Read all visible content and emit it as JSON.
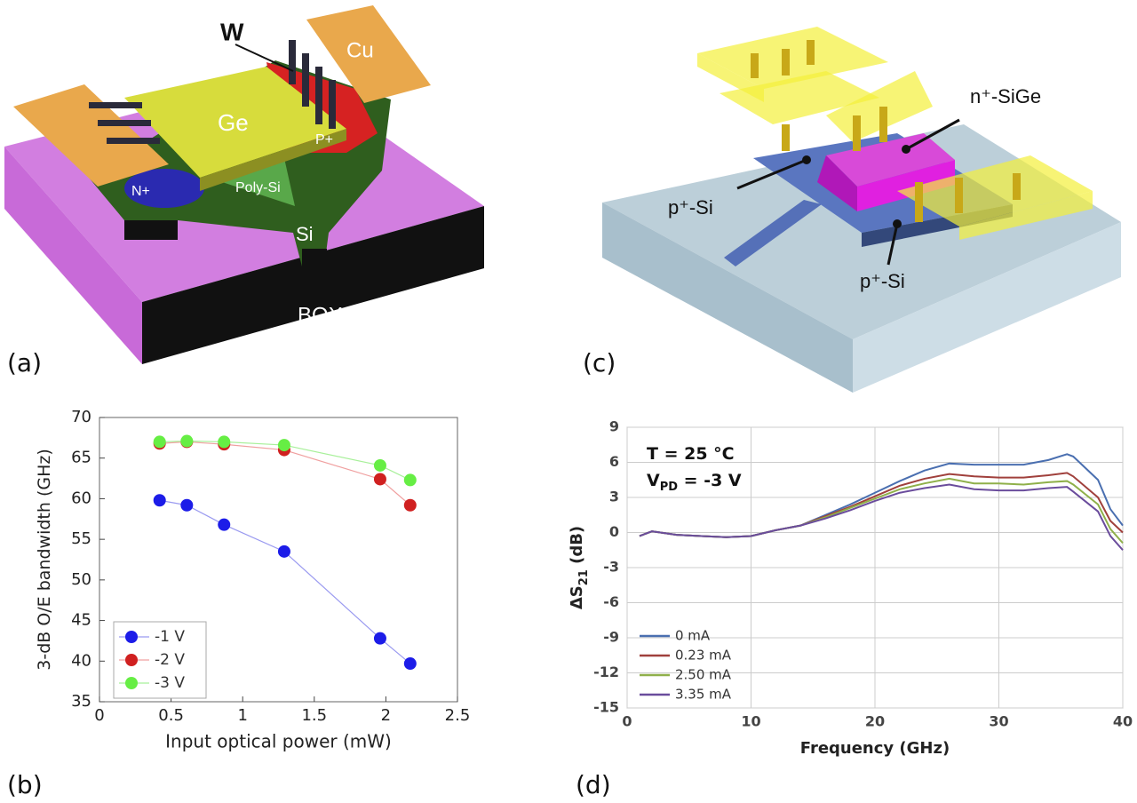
{
  "panel_labels": [
    "(a)",
    "(b)",
    "(c)",
    "(d)"
  ],
  "diagram_a": {
    "labels": [
      "W",
      "Cu",
      "Ge",
      "P+",
      "N+",
      "Poly-Si",
      "Si",
      "BOX"
    ]
  },
  "diagram_c": {
    "labels": [
      "n⁺-SiGe",
      "p⁺-Si",
      "p⁺-Si"
    ]
  },
  "chart_data": [
    {
      "type": "line",
      "markers": true,
      "xlabel": "Input optical power (mW)",
      "ylabel": [
        "3-dB O/E bandwidth (GHz)"
      ],
      "x": [
        0.42,
        0.61,
        0.87,
        1.29,
        1.96,
        2.17
      ],
      "series": [
        {
          "name": "-1 V",
          "color": "#1c1ce8",
          "line_color": "#9a9af0",
          "values": [
            59.8,
            59.2,
            56.8,
            53.5,
            42.8,
            39.7
          ]
        },
        {
          "name": "-2 V",
          "color": "#d02020",
          "line_color": "#f0a0a0",
          "values": [
            66.8,
            67.0,
            66.7,
            66.0,
            62.4,
            59.2
          ]
        },
        {
          "name": "-3 V",
          "color": "#66ee44",
          "line_color": "#a8f09a",
          "values": [
            67.0,
            67.1,
            67.0,
            66.6,
            64.1,
            62.3
          ]
        }
      ],
      "xlim": [
        0,
        2.5
      ],
      "xticks": [
        0,
        0.5,
        1,
        1.5,
        2,
        2.5
      ],
      "ylim": [
        35,
        70
      ],
      "yticks": [
        35,
        40,
        45,
        50,
        55,
        60,
        65,
        70
      ],
      "grid": false,
      "legend": "lower left"
    },
    {
      "type": "line",
      "markers": false,
      "xlabel": "Frequency (GHz)",
      "ylabel": [
        "ΔS",
        "21",
        " (dB)"
      ],
      "annotations": [
        [
          "T = 25 °C"
        ],
        [
          "V",
          "PD",
          " = -3 V"
        ]
      ],
      "x": [
        1,
        2,
        4,
        6,
        8,
        10,
        12,
        14,
        16,
        18,
        20,
        22,
        24,
        26,
        28,
        30,
        32,
        34,
        35.5,
        36,
        38,
        39,
        40
      ],
      "series": [
        {
          "name": "0 mA",
          "color": "#4a6fb0",
          "values": [
            -0.3,
            0.1,
            -0.2,
            -0.3,
            -0.4,
            -0.3,
            0.2,
            0.6,
            1.5,
            2.4,
            3.4,
            4.4,
            5.3,
            5.9,
            5.8,
            5.8,
            5.8,
            6.2,
            6.7,
            6.5,
            4.5,
            2.0,
            0.6
          ]
        },
        {
          "name": "0.23 mA",
          "color": "#a0403c",
          "values": [
            -0.3,
            0.1,
            -0.2,
            -0.3,
            -0.4,
            -0.3,
            0.2,
            0.6,
            1.4,
            2.2,
            3.1,
            4.0,
            4.6,
            5.0,
            4.8,
            4.7,
            4.7,
            4.9,
            5.1,
            4.8,
            3.0,
            1.0,
            0.0
          ]
        },
        {
          "name": "2.50 mA",
          "color": "#8fb04a",
          "values": [
            -0.3,
            0.1,
            -0.2,
            -0.3,
            -0.4,
            -0.3,
            0.2,
            0.6,
            1.3,
            2.1,
            2.9,
            3.7,
            4.2,
            4.6,
            4.2,
            4.2,
            4.1,
            4.3,
            4.4,
            4.1,
            2.4,
            0.3,
            -0.9
          ]
        },
        {
          "name": "3.35 mA",
          "color": "#6a4c9c",
          "values": [
            -0.3,
            0.1,
            -0.2,
            -0.3,
            -0.4,
            -0.3,
            0.2,
            0.6,
            1.2,
            1.9,
            2.7,
            3.4,
            3.8,
            4.1,
            3.7,
            3.6,
            3.6,
            3.8,
            3.9,
            3.5,
            1.8,
            -0.3,
            -1.5
          ]
        }
      ],
      "xlim": [
        0,
        40
      ],
      "xticks": [
        0,
        10,
        20,
        30,
        40
      ],
      "ylim": [
        -15,
        9
      ],
      "yticks": [
        -15,
        -12,
        -9,
        -6,
        -3,
        0,
        3,
        6,
        9
      ],
      "grid": true,
      "legend": "lower left"
    }
  ]
}
